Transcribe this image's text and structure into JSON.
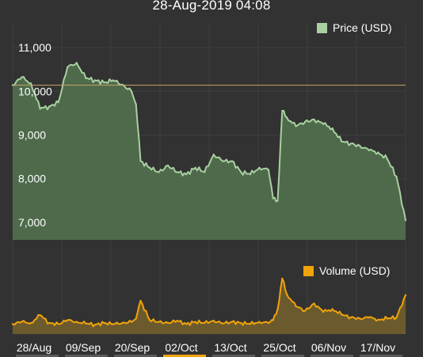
{
  "header": {
    "datetime": "28-Aug-2019 04:08"
  },
  "colors": {
    "background": "#323232",
    "grid": "#3f3f3f",
    "price_line": "#a8d0a0",
    "price_fill": "#4e6a4b",
    "volume_line": "#f0a30a",
    "volume_fill": "#6b5a2e",
    "reference_line": "#c9a46a",
    "highlight_tab": "#f0a30a"
  },
  "chart_data": [
    {
      "type": "area",
      "title": "",
      "legend": {
        "label": "Price (USD)",
        "position": "top-right"
      },
      "y_ticks": [
        "11,000",
        "10,000",
        "9,000",
        "8,000",
        "7,000"
      ],
      "y_tick_values": [
        11000,
        10000,
        9000,
        8000,
        7000
      ],
      "ylim": [
        6600,
        11400
      ],
      "reference_value": 10140,
      "x": [
        "2019-08-28",
        "2019-08-30",
        "2019-09-01",
        "2019-09-03",
        "2019-09-05",
        "2019-09-07",
        "2019-09-09",
        "2019-09-11",
        "2019-09-13",
        "2019-09-15",
        "2019-09-17",
        "2019-09-19",
        "2019-09-21",
        "2019-09-23",
        "2019-09-24",
        "2019-09-25",
        "2019-09-27",
        "2019-09-29",
        "2019-10-01",
        "2019-10-03",
        "2019-10-05",
        "2019-10-07",
        "2019-10-09",
        "2019-10-11",
        "2019-10-13",
        "2019-10-15",
        "2019-10-17",
        "2019-10-19",
        "2019-10-21",
        "2019-10-23",
        "2019-10-24",
        "2019-10-25",
        "2019-10-26",
        "2019-10-27",
        "2019-10-29",
        "2019-10-31",
        "2019-11-02",
        "2019-11-04",
        "2019-11-06",
        "2019-11-08",
        "2019-11-10",
        "2019-11-12",
        "2019-11-14",
        "2019-11-16",
        "2019-11-18",
        "2019-11-20",
        "2019-11-22"
      ],
      "values": [
        10140,
        10320,
        10180,
        9600,
        9650,
        9750,
        10550,
        10650,
        10300,
        10250,
        10200,
        10250,
        10150,
        10000,
        9700,
        8400,
        8250,
        8150,
        8300,
        8150,
        8100,
        8250,
        8150,
        8550,
        8400,
        8400,
        8150,
        8100,
        8250,
        8200,
        7550,
        7500,
        9550,
        9400,
        9200,
        9300,
        9350,
        9250,
        9150,
        8850,
        8800,
        8750,
        8650,
        8600,
        8450,
        8050,
        7050
      ]
    },
    {
      "type": "area",
      "title": "",
      "legend": {
        "label": "Volume (USD)",
        "position": "top-right"
      },
      "x": [
        "2019-08-28",
        "2019-08-30",
        "2019-09-01",
        "2019-09-03",
        "2019-09-05",
        "2019-09-07",
        "2019-09-09",
        "2019-09-11",
        "2019-09-13",
        "2019-09-15",
        "2019-09-17",
        "2019-09-19",
        "2019-09-21",
        "2019-09-23",
        "2019-09-24",
        "2019-09-25",
        "2019-09-27",
        "2019-09-29",
        "2019-10-01",
        "2019-10-03",
        "2019-10-05",
        "2019-10-07",
        "2019-10-09",
        "2019-10-11",
        "2019-10-13",
        "2019-10-15",
        "2019-10-17",
        "2019-10-19",
        "2019-10-21",
        "2019-10-23",
        "2019-10-24",
        "2019-10-25",
        "2019-10-26",
        "2019-10-27",
        "2019-10-29",
        "2019-10-31",
        "2019-11-02",
        "2019-11-04",
        "2019-11-06",
        "2019-11-08",
        "2019-11-10",
        "2019-11-12",
        "2019-11-14",
        "2019-11-16",
        "2019-11-18",
        "2019-11-20",
        "2019-11-22"
      ],
      "values": [
        0.18,
        0.22,
        0.2,
        0.34,
        0.2,
        0.18,
        0.25,
        0.22,
        0.19,
        0.17,
        0.2,
        0.18,
        0.2,
        0.22,
        0.28,
        0.6,
        0.25,
        0.22,
        0.2,
        0.24,
        0.18,
        0.22,
        0.2,
        0.24,
        0.19,
        0.22,
        0.2,
        0.18,
        0.22,
        0.2,
        0.25,
        0.45,
        1.0,
        0.72,
        0.5,
        0.42,
        0.55,
        0.4,
        0.45,
        0.35,
        0.3,
        0.28,
        0.3,
        0.26,
        0.28,
        0.3,
        0.7
      ]
    }
  ],
  "x_axis": {
    "tabs": [
      "28/Aug",
      "09/Sep",
      "20/Sep",
      "02/Oct",
      "13/Oct",
      "25/Oct",
      "06/Nov",
      "17/Nov"
    ],
    "selected_index": 3
  }
}
